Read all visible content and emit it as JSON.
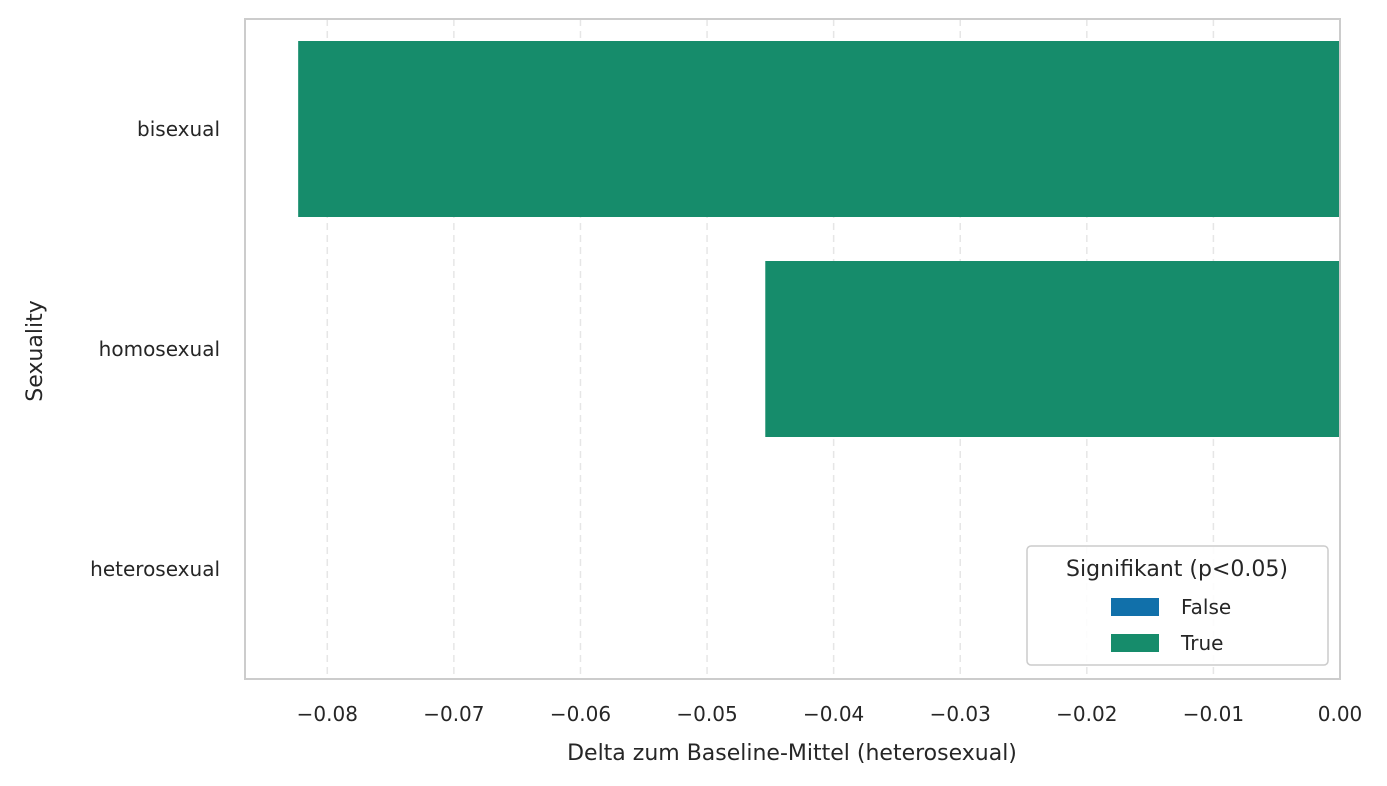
{
  "chart_data": {
    "type": "bar",
    "orientation": "horizontal",
    "categories": [
      "bisexual",
      "homosexual",
      "heterosexual"
    ],
    "values": [
      -0.0823,
      -0.0454,
      0.0
    ],
    "significant": [
      true,
      true,
      false
    ],
    "xlabel": "Delta zum Baseline-Mittel (heterosexual)",
    "ylabel": "Sexuality",
    "xlim": [
      -0.0865,
      0.0
    ],
    "xticks": [
      -0.08,
      -0.07,
      -0.06,
      -0.05,
      -0.04,
      -0.03,
      -0.02,
      -0.01,
      0.0
    ],
    "xtick_labels": [
      "−0.08",
      "−0.07",
      "−0.06",
      "−0.05",
      "−0.04",
      "−0.03",
      "−0.02",
      "−0.01",
      "0.00"
    ],
    "grid": "x, dashed",
    "legend": {
      "title": "Signifikant (p<0.05)",
      "placement": "lower-right",
      "entries": [
        {
          "label": "False",
          "color": "#1170aa"
        },
        {
          "label": "True",
          "color": "#168c6b"
        }
      ]
    },
    "colors": {
      "False": "#1170aa",
      "True": "#168c6b"
    }
  }
}
